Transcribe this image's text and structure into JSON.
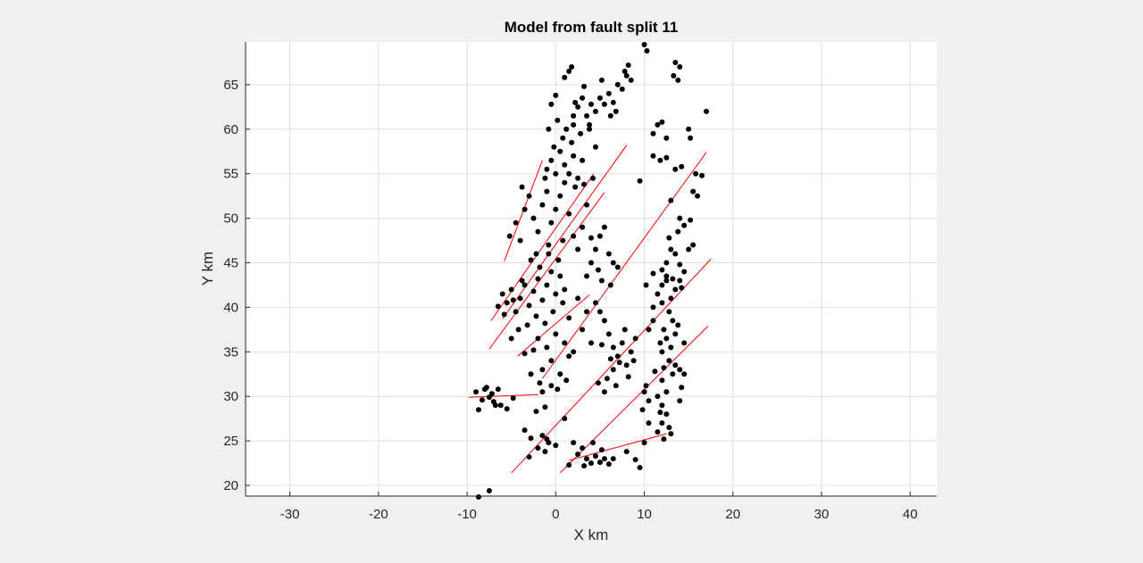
{
  "chart_data": {
    "type": "scatter",
    "title": "Model from fault split 11",
    "xlabel": "X km",
    "ylabel": "Y km",
    "xlim": [
      -35,
      43
    ],
    "ylim": [
      18.8,
      69.8
    ],
    "xticks": [
      -30,
      -20,
      -10,
      0,
      10,
      20,
      30,
      40
    ],
    "yticks": [
      20,
      25,
      30,
      35,
      40,
      45,
      50,
      55,
      60,
      65
    ],
    "grid": true,
    "colors": {
      "points": "#000000",
      "faults": "#ff0000",
      "background": "#ffffff",
      "grid": "#dfdfdf"
    },
    "faults": [
      [
        [
          -5.8,
          45.2
        ],
        [
          -1.5,
          56.5
        ]
      ],
      [
        [
          -7.3,
          38.5
        ],
        [
          4.3,
          55.0
        ]
      ],
      [
        [
          -7.5,
          35.3
        ],
        [
          5.5,
          52.9
        ]
      ],
      [
        [
          -6.0,
          38.7
        ],
        [
          8.0,
          58.2
        ]
      ],
      [
        [
          -4.3,
          34.5
        ],
        [
          3.8,
          41.4
        ]
      ],
      [
        [
          -1.5,
          32.0
        ],
        [
          17.0,
          57.4
        ]
      ],
      [
        [
          -9.8,
          29.9
        ],
        [
          -2.0,
          30.2
        ]
      ],
      [
        [
          -5.0,
          21.4
        ],
        [
          17.5,
          45.4
        ]
      ],
      [
        [
          0.5,
          21.4
        ],
        [
          17.2,
          37.9
        ]
      ],
      [
        [
          1.5,
          22.8
        ],
        [
          12.5,
          25.8
        ]
      ]
    ],
    "points": [
      [
        -8.7,
        18.7
      ],
      [
        -7.5,
        19.4
      ],
      [
        -9.0,
        30.5
      ],
      [
        -8.0,
        30.8
      ],
      [
        -7.2,
        30.3
      ],
      [
        -6.5,
        30.8
      ],
      [
        -8.3,
        29.6
      ],
      [
        -7.0,
        29.4
      ],
      [
        -8.7,
        28.5
      ],
      [
        -6.2,
        29.0
      ],
      [
        -5.5,
        28.6
      ],
      [
        -4.8,
        29.8
      ],
      [
        -7.5,
        29.9
      ],
      [
        -7.8,
        31.0
      ],
      [
        -6.8,
        29.0
      ],
      [
        -1.5,
        30.5
      ],
      [
        -1.2,
        28.8
      ],
      [
        -2.2,
        28.3
      ],
      [
        -3.5,
        26.2
      ],
      [
        -2.8,
        25.3
      ],
      [
        -1.5,
        25.6
      ],
      [
        -0.8,
        24.8
      ],
      [
        -1.2,
        23.8
      ],
      [
        0.0,
        24.5
      ],
      [
        1.0,
        27.5
      ],
      [
        -2.0,
        24.2
      ],
      [
        -3.0,
        23.2
      ],
      [
        -1.0,
        25.2
      ],
      [
        2.0,
        24.8
      ],
      [
        2.5,
        23.5
      ],
      [
        3.5,
        23.0
      ],
      [
        4.0,
        22.5
      ],
      [
        4.5,
        23.3
      ],
      [
        5.0,
        22.6
      ],
      [
        5.5,
        23.0
      ],
      [
        6.0,
        22.4
      ],
      [
        3.0,
        24.2
      ],
      [
        4.2,
        24.8
      ],
      [
        5.2,
        24.0
      ],
      [
        1.5,
        22.3
      ],
      [
        3.2,
        22.2
      ],
      [
        6.5,
        23.0
      ],
      [
        8.0,
        23.8
      ],
      [
        9.0,
        22.9
      ],
      [
        9.5,
        22.0
      ],
      [
        10.0,
        24.8
      ],
      [
        -6.5,
        40.1
      ],
      [
        -6.0,
        41.5
      ],
      [
        -5.5,
        40.5
      ],
      [
        -5.0,
        42.0
      ],
      [
        -4.5,
        39.5
      ],
      [
        -4.0,
        41.0
      ],
      [
        -3.5,
        42.5
      ],
      [
        -3.0,
        40.2
      ],
      [
        -2.5,
        41.8
      ],
      [
        -2.0,
        43.2
      ],
      [
        -1.5,
        40.8
      ],
      [
        -1.0,
        42.5
      ],
      [
        -0.5,
        44.0
      ],
      [
        0.0,
        41.5
      ],
      [
        0.5,
        43.5
      ],
      [
        1.0,
        42.0
      ],
      [
        -1.8,
        44.5
      ],
      [
        -2.8,
        45.3
      ],
      [
        -0.8,
        46.0
      ],
      [
        0.3,
        45.3
      ],
      [
        -4.8,
        40.8
      ],
      [
        -3.8,
        43.0
      ],
      [
        -5.8,
        39.2
      ],
      [
        -2.2,
        39.0
      ],
      [
        -1.2,
        38.2
      ],
      [
        -0.3,
        39.5
      ],
      [
        0.8,
        40.5
      ],
      [
        1.5,
        38.8
      ],
      [
        -3.2,
        38.0
      ],
      [
        -4.2,
        37.5
      ],
      [
        -5.0,
        36.5
      ],
      [
        -2.0,
        36.5
      ],
      [
        -1.0,
        35.5
      ],
      [
        0.0,
        37.0
      ],
      [
        1.0,
        36.0
      ],
      [
        2.0,
        35.0
      ],
      [
        -0.5,
        34.0
      ],
      [
        -1.5,
        33.0
      ],
      [
        0.5,
        32.5
      ],
      [
        1.5,
        34.5
      ],
      [
        -2.5,
        35.2
      ],
      [
        -3.5,
        34.8
      ],
      [
        3.0,
        37.5
      ],
      [
        4.0,
        36.0
      ],
      [
        3.5,
        39.5
      ],
      [
        2.5,
        41.0
      ],
      [
        -1.8,
        31.5
      ],
      [
        0.2,
        30.8
      ],
      [
        -0.5,
        31.2
      ],
      [
        1.2,
        31.8
      ],
      [
        -2.8,
        32.5
      ],
      [
        -5.2,
        48.0
      ],
      [
        -4.5,
        49.5
      ],
      [
        -4.0,
        47.5
      ],
      [
        -3.5,
        51.0
      ],
      [
        -3.0,
        52.5
      ],
      [
        -3.8,
        53.5
      ],
      [
        -2.5,
        50.0
      ],
      [
        -2.0,
        48.5
      ],
      [
        -1.5,
        51.5
      ],
      [
        -1.0,
        53.0
      ],
      [
        -0.5,
        49.5
      ],
      [
        0.0,
        51.0
      ],
      [
        0.5,
        52.5
      ],
      [
        1.0,
        54.0
      ],
      [
        1.5,
        50.5
      ],
      [
        2.0,
        48.0
      ],
      [
        -0.8,
        47.0
      ],
      [
        0.8,
        47.5
      ],
      [
        2.5,
        46.5
      ],
      [
        -2.2,
        46.0
      ],
      [
        3.0,
        49.0
      ],
      [
        3.5,
        51.5
      ],
      [
        4.0,
        47.8
      ],
      [
        -1.2,
        54.5
      ],
      [
        -1.0,
        55.5
      ],
      [
        -0.5,
        56.5
      ],
      [
        0.0,
        55.0
      ],
      [
        0.5,
        57.5
      ],
      [
        1.0,
        56.0
      ],
      [
        1.5,
        55.0
      ],
      [
        2.0,
        57.0
      ],
      [
        2.5,
        54.5
      ],
      [
        3.0,
        56.5
      ],
      [
        -0.2,
        58.0
      ],
      [
        0.8,
        59.0
      ],
      [
        1.8,
        58.5
      ],
      [
        2.8,
        59.5
      ],
      [
        3.8,
        60.5
      ],
      [
        4.5,
        58.0
      ],
      [
        2.2,
        53.5
      ],
      [
        3.2,
        53.8
      ],
      [
        4.2,
        54.5
      ],
      [
        -0.8,
        60.0
      ],
      [
        0.2,
        61.0
      ],
      [
        1.2,
        60.0
      ],
      [
        2.0,
        61.5
      ],
      [
        1.5,
        66.5
      ],
      [
        1.8,
        67.0
      ],
      [
        1.0,
        65.8
      ],
      [
        -0.5,
        62.8
      ],
      [
        0.0,
        63.8
      ],
      [
        2.5,
        62.5
      ],
      [
        3.0,
        63.5
      ],
      [
        2.0,
        60.5
      ],
      [
        3.5,
        61.5
      ],
      [
        4.0,
        62.8
      ],
      [
        4.5,
        62.0
      ],
      [
        5.0,
        63.5
      ],
      [
        5.5,
        62.8
      ],
      [
        6.0,
        64.0
      ],
      [
        6.5,
        63.0
      ],
      [
        7.0,
        65.0
      ],
      [
        7.5,
        64.5
      ],
      [
        8.0,
        66.0
      ],
      [
        8.2,
        67.2
      ],
      [
        7.8,
        66.5
      ],
      [
        6.8,
        62.0
      ],
      [
        6.2,
        61.5
      ],
      [
        8.5,
        65.5
      ],
      [
        3.2,
        64.8
      ],
      [
        2.2,
        63.0
      ],
      [
        5.2,
        65.5
      ],
      [
        3.8,
        60.0
      ],
      [
        10.0,
        69.5
      ],
      [
        10.3,
        68.8
      ],
      [
        13.5,
        67.5
      ],
      [
        14.0,
        67.0
      ],
      [
        13.3,
        66.0
      ],
      [
        13.8,
        65.5
      ],
      [
        11.5,
        60.5
      ],
      [
        12.0,
        60.8
      ],
      [
        11.0,
        59.5
      ],
      [
        12.5,
        59.0
      ],
      [
        15.0,
        60.0
      ],
      [
        15.2,
        59.0
      ],
      [
        17.0,
        62.0
      ],
      [
        11.0,
        57.0
      ],
      [
        11.8,
        56.5
      ],
      [
        12.5,
        56.8
      ],
      [
        13.5,
        55.5
      ],
      [
        14.2,
        55.8
      ],
      [
        15.8,
        55.0
      ],
      [
        16.5,
        54.8
      ],
      [
        15.5,
        53.0
      ],
      [
        16.0,
        52.5
      ],
      [
        13.0,
        52.0
      ],
      [
        14.0,
        50.0
      ],
      [
        15.2,
        49.8
      ],
      [
        9.5,
        54.2
      ],
      [
        4.5,
        40.5
      ],
      [
        5.0,
        39.5
      ],
      [
        5.5,
        38.5
      ],
      [
        6.0,
        37.0
      ],
      [
        6.5,
        35.5
      ],
      [
        7.0,
        34.5
      ],
      [
        7.5,
        36.0
      ],
      [
        8.0,
        33.5
      ],
      [
        8.5,
        35.0
      ],
      [
        9.0,
        36.5
      ],
      [
        6.5,
        33.0
      ],
      [
        5.8,
        32.0
      ],
      [
        4.8,
        31.5
      ],
      [
        7.8,
        37.5
      ],
      [
        8.8,
        34.0
      ],
      [
        5.2,
        35.8
      ],
      [
        6.2,
        34.2
      ],
      [
        7.2,
        33.8
      ],
      [
        8.2,
        32.2
      ],
      [
        5.5,
        30.5
      ],
      [
        6.8,
        31.2
      ],
      [
        5.5,
        49.0
      ],
      [
        5.0,
        48.0
      ],
      [
        4.5,
        46.5
      ],
      [
        6.0,
        46.0
      ],
      [
        6.5,
        45.0
      ],
      [
        7.0,
        44.5
      ],
      [
        4.0,
        45.0
      ],
      [
        3.5,
        43.5
      ],
      [
        5.2,
        43.0
      ],
      [
        6.2,
        42.5
      ],
      [
        4.8,
        44.2
      ],
      [
        11.0,
        40.0
      ],
      [
        11.5,
        41.5
      ],
      [
        12.0,
        42.5
      ],
      [
        12.5,
        43.5
      ],
      [
        13.0,
        41.0
      ],
      [
        13.5,
        42.0
      ],
      [
        14.0,
        43.0
      ],
      [
        12.0,
        40.5
      ],
      [
        12.8,
        39.5
      ],
      [
        13.2,
        38.5
      ],
      [
        12.2,
        37.5
      ],
      [
        12.5,
        36.5
      ],
      [
        13.0,
        35.5
      ],
      [
        12.0,
        35.0
      ],
      [
        12.8,
        34.0
      ],
      [
        13.5,
        33.5
      ],
      [
        14.0,
        33.0
      ],
      [
        13.2,
        32.5
      ],
      [
        12.0,
        31.8
      ],
      [
        12.5,
        30.5
      ],
      [
        11.5,
        30.0
      ],
      [
        12.0,
        29.0
      ],
      [
        10.5,
        29.5
      ],
      [
        10.0,
        30.5
      ],
      [
        9.8,
        28.5
      ],
      [
        12.5,
        28.0
      ],
      [
        12.0,
        27.0
      ],
      [
        12.8,
        26.5
      ],
      [
        11.5,
        26.0
      ],
      [
        10.5,
        27.0
      ],
      [
        14.0,
        29.5
      ],
      [
        14.5,
        32.5
      ],
      [
        13.8,
        38.0
      ],
      [
        14.5,
        36.0
      ],
      [
        11.0,
        38.5
      ],
      [
        10.5,
        37.5
      ],
      [
        11.8,
        36.0
      ],
      [
        12.2,
        33.2
      ],
      [
        11.2,
        32.8
      ],
      [
        14.2,
        31.0
      ],
      [
        13.0,
        25.8
      ],
      [
        12.2,
        25.2
      ],
      [
        11.8,
        28.2
      ],
      [
        10.2,
        31.2
      ],
      [
        13.5,
        37.0
      ],
      [
        10.2,
        42.5
      ],
      [
        11.0,
        43.8
      ],
      [
        12.0,
        44.2
      ],
      [
        12.5,
        45.0
      ],
      [
        13.0,
        46.5
      ],
      [
        13.5,
        46.0
      ],
      [
        14.0,
        44.8
      ],
      [
        14.5,
        44.0
      ],
      [
        15.0,
        46.5
      ],
      [
        15.5,
        47.0
      ],
      [
        12.8,
        47.8
      ],
      [
        13.8,
        48.5
      ],
      [
        14.5,
        49.2
      ],
      [
        12.5,
        43.0
      ],
      [
        13.2,
        43.2
      ],
      [
        14.2,
        42.2
      ]
    ]
  }
}
